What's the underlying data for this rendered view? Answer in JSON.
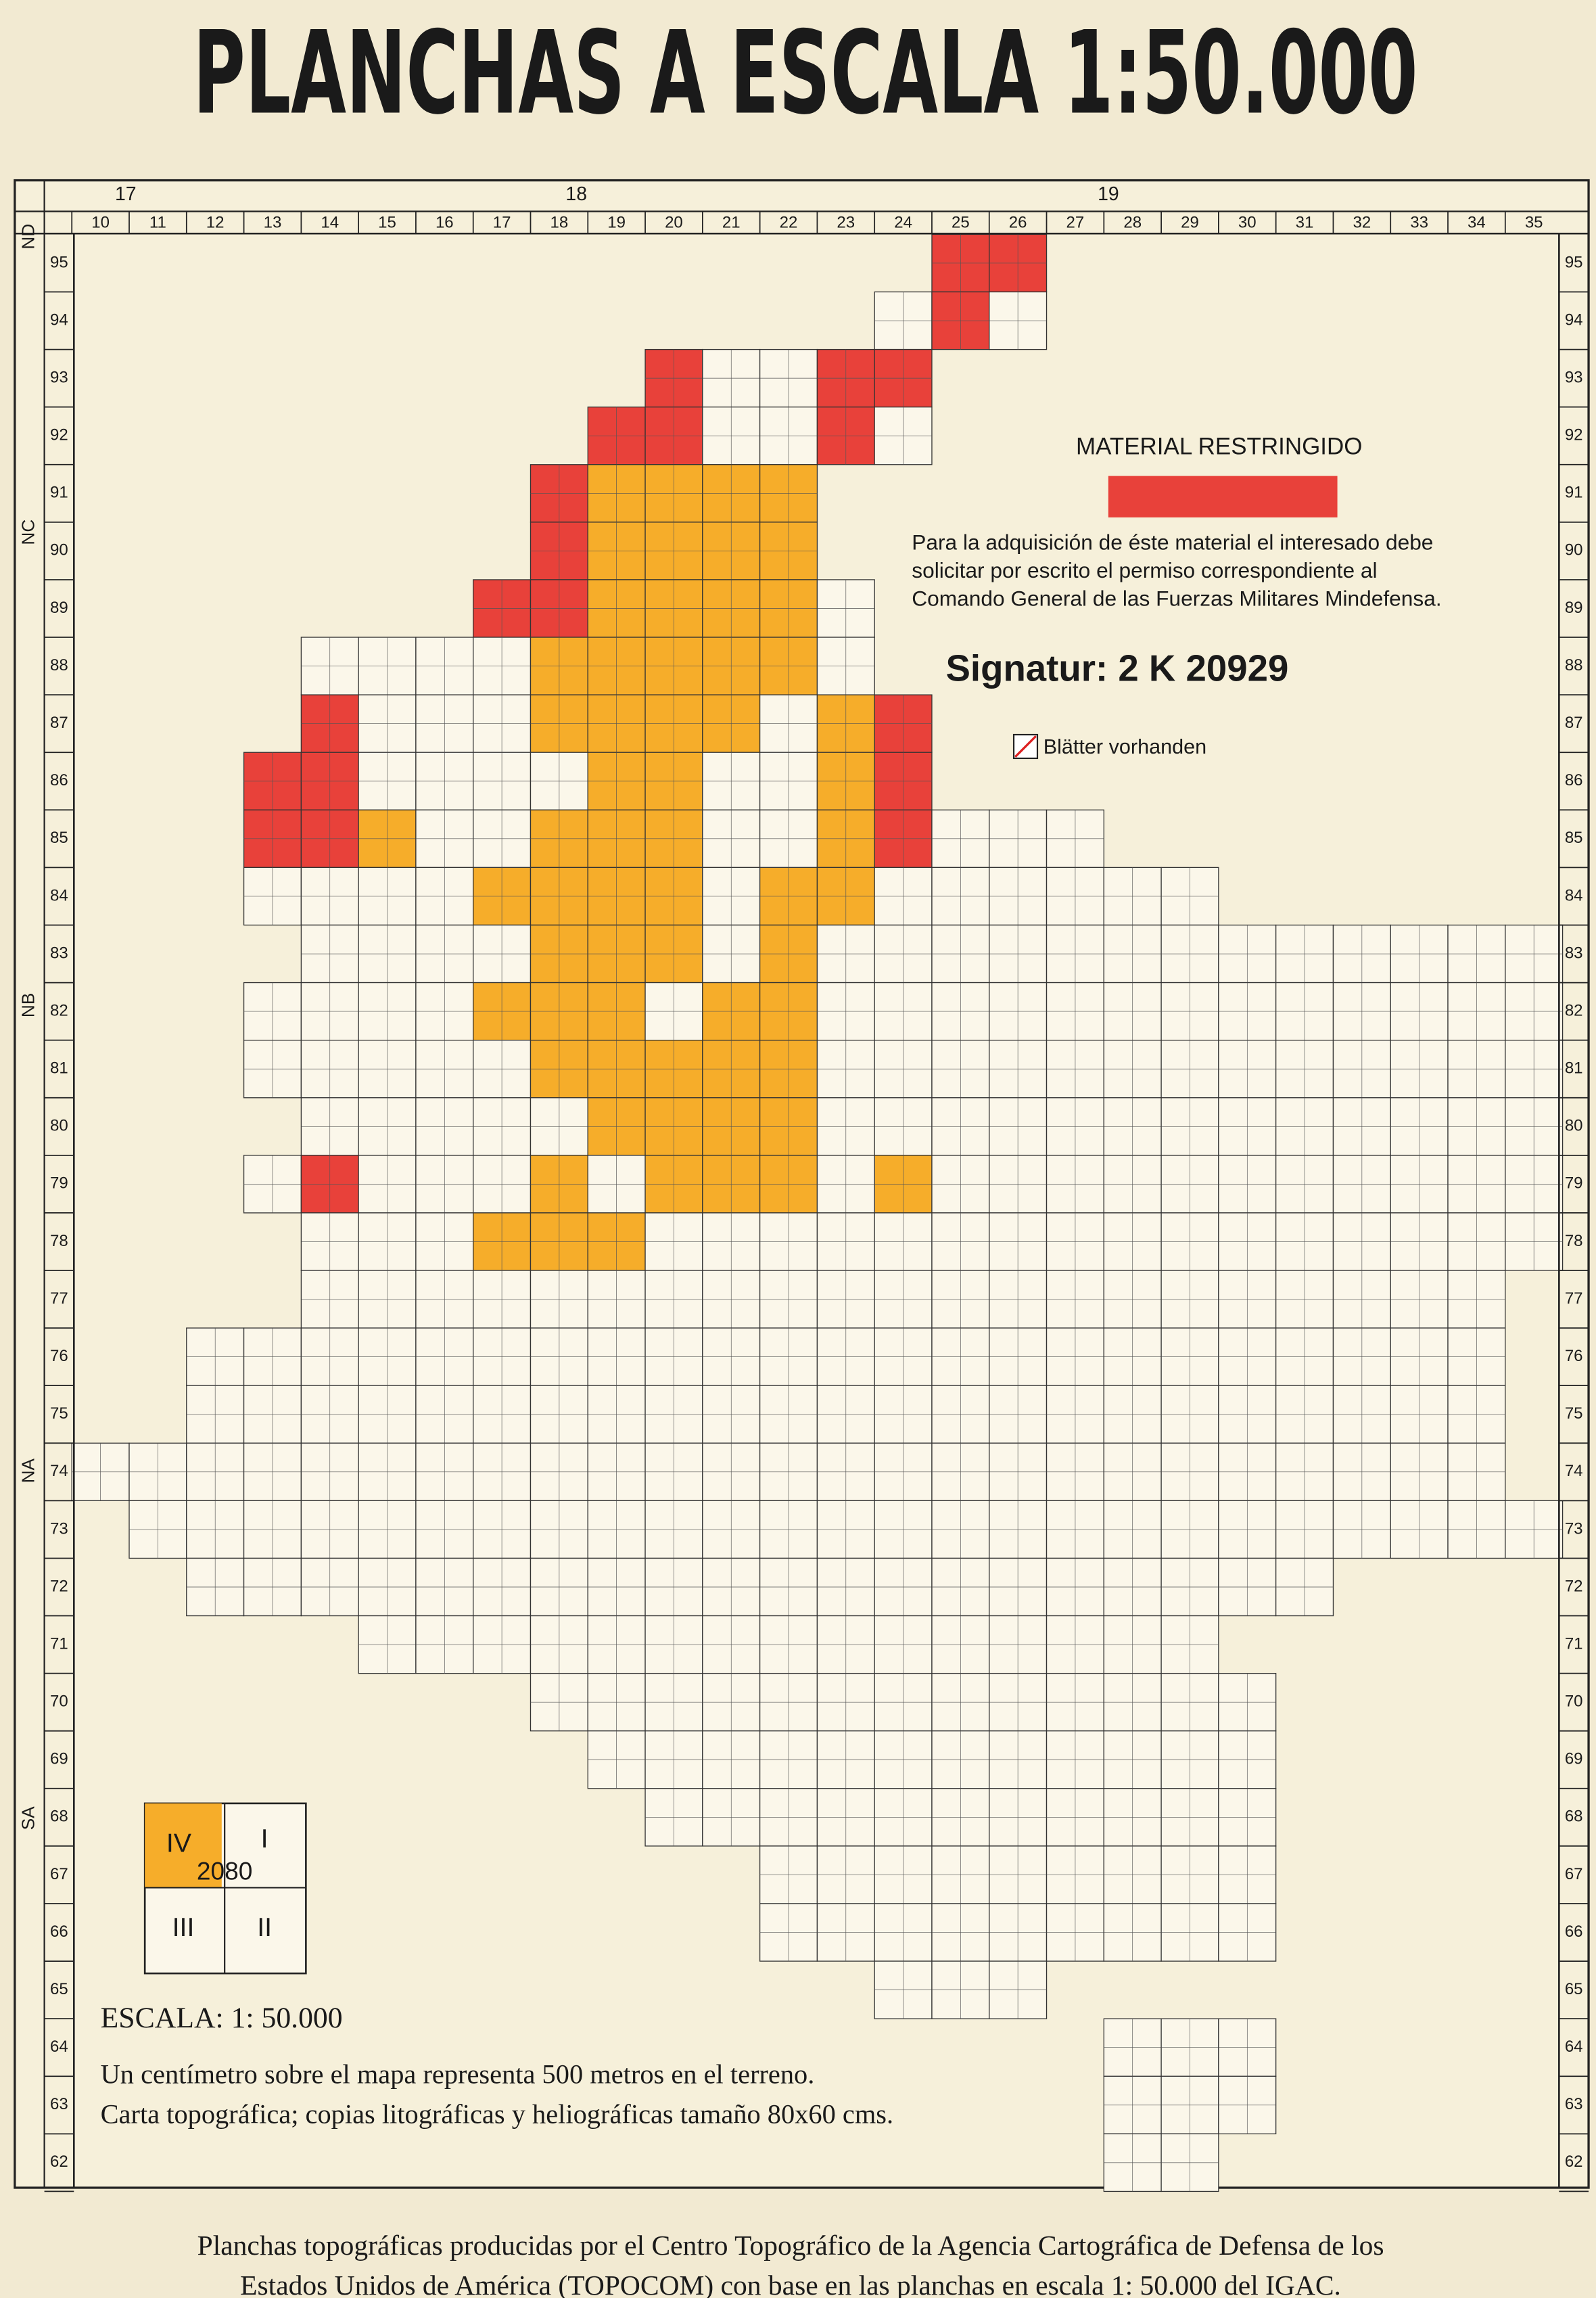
{
  "title": "PLANCHAS A ESCALA 1:50.000",
  "frame": {
    "column_groups": [
      17,
      18,
      19
    ],
    "columns": [
      10,
      11,
      12,
      13,
      14,
      15,
      16,
      17,
      18,
      19,
      20,
      21,
      22,
      23,
      24,
      25,
      26,
      27,
      28,
      29,
      30,
      31,
      32,
      33,
      34,
      35
    ],
    "rows": [
      95,
      94,
      93,
      92,
      91,
      90,
      89,
      88,
      87,
      86,
      85,
      84,
      83,
      82,
      81,
      80,
      79,
      78,
      77,
      76,
      75,
      74,
      73,
      72,
      71,
      70,
      69,
      68,
      67,
      66,
      65,
      64,
      63,
      62
    ],
    "zones": [
      "ND",
      "NC",
      "NB",
      "NA",
      "SA"
    ]
  },
  "legend": {
    "title": "MATERIAL RESTRINGIDO",
    "note_lines": [
      "Para la adquisición de éste material el interesado debe",
      "solicitar por escrito el permiso correspondiente al",
      "Comando General de las Fuerzas Militares Mindefensa."
    ]
  },
  "signature": "Signatur: 2 K 20929",
  "available_label": "Blätter vorhanden",
  "sheet_example": {
    "quadrants": [
      "IV",
      "I",
      "III",
      "II"
    ],
    "number": "2080"
  },
  "scale": {
    "title": "ESCALA: 1: 50.000",
    "lines": [
      "Un centímetro sobre el mapa representa 500 metros en el terreno.",
      "Carta topográfica; copias litográficas y heliográficas tamaño 80x60 cms."
    ]
  },
  "footer": {
    "lines": [
      "Planchas topográficas producidas por el Centro Topográfico de la Agencia Cartográfica de Defensa de los",
      "Estados Unidos de América (TOPOCOM) con base en las planchas en escala 1: 50.000 del IGAC."
    ]
  }
}
